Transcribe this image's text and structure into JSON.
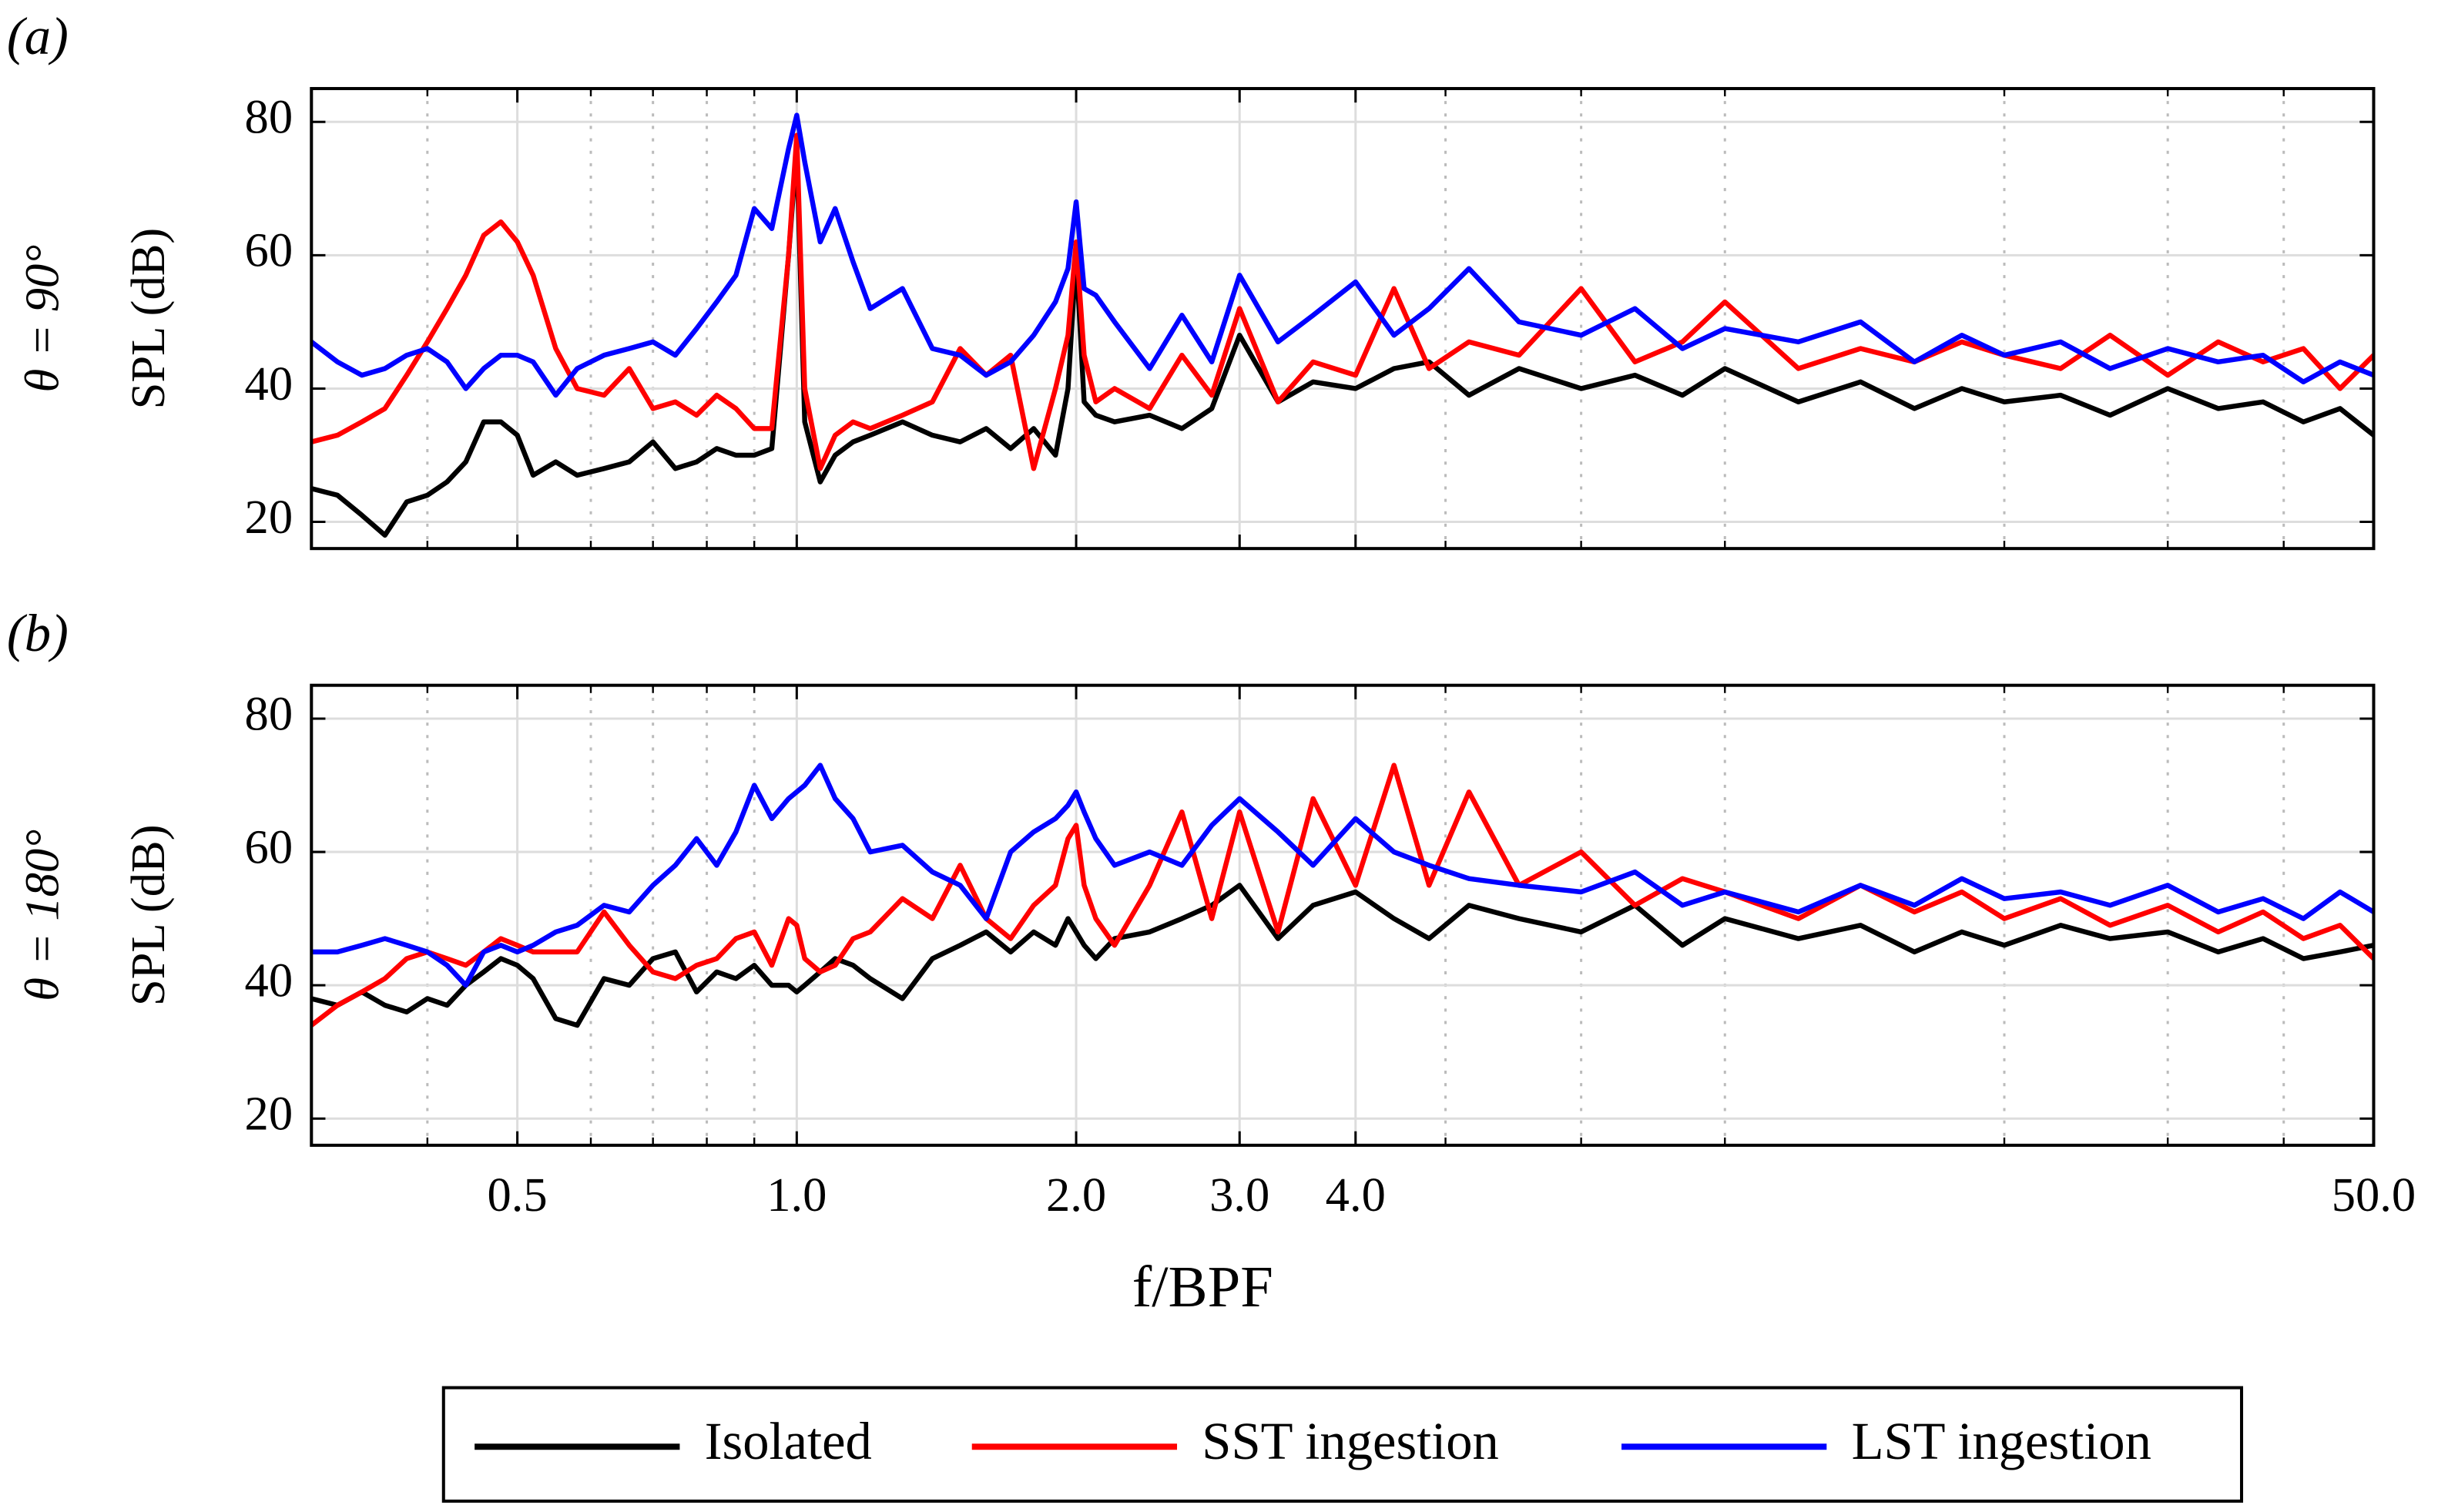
{
  "chart_data": [
    {
      "type": "line",
      "panel_label": "(a)",
      "angle_label": "θ = 90°",
      "ylabel": "SPL (dB)",
      "xscale": "log",
      "xlim": [
        0.3,
        50
      ],
      "ylim": [
        16,
        85
      ],
      "yticks": [
        20,
        40,
        60,
        80
      ],
      "xticks": [
        0.5,
        {
          "value": 1,
          "label": "1.0"
        },
        {
          "value": 2,
          "label": "2.0"
        },
        {
          "value": 3,
          "label": "3.0"
        },
        {
          "value": 4,
          "label": "4.0"
        },
        {
          "value": 50,
          "label": "50.0"
        }
      ],
      "xminor": [
        0.4,
        0.6,
        0.7,
        0.8,
        0.9,
        5,
        7,
        10,
        20,
        30,
        40
      ],
      "grid": true,
      "show_xticklabels": false,
      "x": [
        0.3,
        0.32,
        0.34,
        0.36,
        0.38,
        0.4,
        0.42,
        0.44,
        0.46,
        0.48,
        0.5,
        0.52,
        0.55,
        0.58,
        0.62,
        0.66,
        0.7,
        0.74,
        0.78,
        0.82,
        0.86,
        0.9,
        0.94,
        0.98,
        1.0,
        1.02,
        1.06,
        1.1,
        1.15,
        1.2,
        1.3,
        1.4,
        1.5,
        1.6,
        1.7,
        1.8,
        1.9,
        1.96,
        2.0,
        2.04,
        2.1,
        2.2,
        2.4,
        2.6,
        2.8,
        3.0,
        3.3,
        3.6,
        4.0,
        4.4,
        4.8,
        5.3,
        6,
        7,
        8,
        9,
        10,
        12,
        14,
        16,
        18,
        20,
        23,
        26,
        30,
        34,
        38,
        42,
        46,
        50
      ],
      "series": [
        {
          "name": "Isolated",
          "color": "#000000",
          "values": [
            25,
            24,
            21,
            18,
            23,
            24,
            26,
            29,
            35,
            35,
            33,
            27,
            29,
            27,
            28,
            29,
            32,
            28,
            29,
            31,
            30,
            30,
            31,
            60,
            76,
            35,
            26,
            30,
            32,
            33,
            35,
            33,
            32,
            34,
            31,
            34,
            30,
            40,
            60,
            38,
            36,
            35,
            36,
            34,
            37,
            48,
            38,
            41,
            40,
            43,
            44,
            39,
            43,
            40,
            42,
            39,
            43,
            38,
            41,
            37,
            40,
            38,
            39,
            36,
            40,
            37,
            38,
            35,
            37,
            33
          ]
        },
        {
          "name": "SST ingestion",
          "color": "#ff0000",
          "values": [
            32,
            33,
            35,
            37,
            42,
            47,
            52,
            57,
            63,
            65,
            62,
            57,
            46,
            40,
            39,
            43,
            37,
            38,
            36,
            39,
            37,
            34,
            34,
            60,
            78,
            40,
            28,
            33,
            35,
            34,
            36,
            38,
            46,
            42,
            45,
            28,
            40,
            48,
            62,
            45,
            38,
            40,
            37,
            45,
            39,
            52,
            38,
            44,
            42,
            55,
            43,
            47,
            45,
            55,
            44,
            47,
            53,
            43,
            46,
            44,
            47,
            45,
            43,
            48,
            42,
            47,
            44,
            46,
            40,
            45
          ]
        },
        {
          "name": "LST ingestion",
          "color": "#0000ff",
          "values": [
            47,
            44,
            42,
            43,
            45,
            46,
            44,
            40,
            43,
            45,
            45,
            44,
            39,
            43,
            45,
            46,
            47,
            45,
            49,
            53,
            57,
            67,
            64,
            76,
            81,
            74,
            62,
            67,
            59,
            52,
            55,
            46,
            45,
            42,
            44,
            48,
            53,
            58,
            68,
            55,
            54,
            50,
            43,
            51,
            44,
            57,
            47,
            51,
            56,
            48,
            52,
            58,
            50,
            48,
            52,
            46,
            49,
            47,
            50,
            44,
            48,
            45,
            47,
            43,
            46,
            44,
            45,
            41,
            44,
            42
          ]
        }
      ]
    },
    {
      "type": "line",
      "panel_label": "(b)",
      "angle_label": "θ = 180°",
      "ylabel": "SPL (dB)",
      "xlabel": "f/BPF",
      "xscale": "log",
      "xlim": [
        0.3,
        50
      ],
      "ylim": [
        16,
        85
      ],
      "yticks": [
        20,
        40,
        60,
        80
      ],
      "xticks": [
        0.5,
        {
          "value": 1,
          "label": "1.0"
        },
        {
          "value": 2,
          "label": "2.0"
        },
        {
          "value": 3,
          "label": "3.0"
        },
        {
          "value": 4,
          "label": "4.0"
        },
        {
          "value": 50,
          "label": "50.0"
        }
      ],
      "xminor": [
        0.4,
        0.6,
        0.7,
        0.8,
        0.9,
        5,
        7,
        10,
        20,
        30,
        40
      ],
      "grid": true,
      "show_xticklabels": true,
      "x": [
        0.3,
        0.32,
        0.34,
        0.36,
        0.38,
        0.4,
        0.42,
        0.44,
        0.46,
        0.48,
        0.5,
        0.52,
        0.55,
        0.58,
        0.62,
        0.66,
        0.7,
        0.74,
        0.78,
        0.82,
        0.86,
        0.9,
        0.94,
        0.98,
        1.0,
        1.02,
        1.06,
        1.1,
        1.15,
        1.2,
        1.3,
        1.4,
        1.5,
        1.6,
        1.7,
        1.8,
        1.9,
        1.96,
        2.0,
        2.04,
        2.1,
        2.2,
        2.4,
        2.6,
        2.8,
        3.0,
        3.3,
        3.6,
        4.0,
        4.4,
        4.8,
        5.3,
        6,
        7,
        8,
        9,
        10,
        12,
        14,
        16,
        18,
        20,
        23,
        26,
        30,
        34,
        38,
        42,
        46,
        50
      ],
      "series": [
        {
          "name": "Isolated",
          "color": "#000000",
          "values": [
            38,
            37,
            39,
            37,
            36,
            38,
            37,
            40,
            42,
            44,
            43,
            41,
            35,
            34,
            41,
            40,
            44,
            45,
            39,
            42,
            41,
            43,
            40,
            40,
            39,
            40,
            42,
            44,
            43,
            41,
            38,
            44,
            46,
            48,
            45,
            48,
            46,
            50,
            48,
            46,
            44,
            47,
            48,
            50,
            52,
            55,
            47,
            52,
            54,
            50,
            47,
            52,
            50,
            48,
            52,
            46,
            50,
            47,
            49,
            45,
            48,
            46,
            49,
            47,
            48,
            45,
            47,
            44,
            45,
            46
          ]
        },
        {
          "name": "SST ingestion",
          "color": "#ff0000",
          "values": [
            34,
            37,
            39,
            41,
            44,
            45,
            44,
            43,
            45,
            47,
            46,
            45,
            45,
            45,
            51,
            46,
            42,
            41,
            43,
            44,
            47,
            48,
            43,
            50,
            49,
            44,
            42,
            43,
            47,
            48,
            53,
            50,
            58,
            50,
            47,
            52,
            55,
            62,
            64,
            55,
            50,
            46,
            55,
            66,
            50,
            66,
            48,
            68,
            55,
            73,
            55,
            69,
            55,
            60,
            52,
            56,
            54,
            50,
            55,
            51,
            54,
            50,
            53,
            49,
            52,
            48,
            51,
            47,
            49,
            44
          ]
        },
        {
          "name": "LST ingestion",
          "color": "#0000ff",
          "values": [
            45,
            45,
            46,
            47,
            46,
            45,
            43,
            40,
            45,
            46,
            45,
            46,
            48,
            49,
            52,
            51,
            55,
            58,
            62,
            58,
            63,
            70,
            65,
            68,
            69,
            70,
            73,
            68,
            65,
            60,
            61,
            57,
            55,
            50,
            60,
            63,
            65,
            67,
            69,
            66,
            62,
            58,
            60,
            58,
            64,
            68,
            63,
            58,
            65,
            60,
            58,
            56,
            55,
            54,
            57,
            52,
            54,
            51,
            55,
            52,
            56,
            53,
            54,
            52,
            55,
            51,
            53,
            50,
            54,
            51
          ]
        }
      ]
    }
  ]
}
